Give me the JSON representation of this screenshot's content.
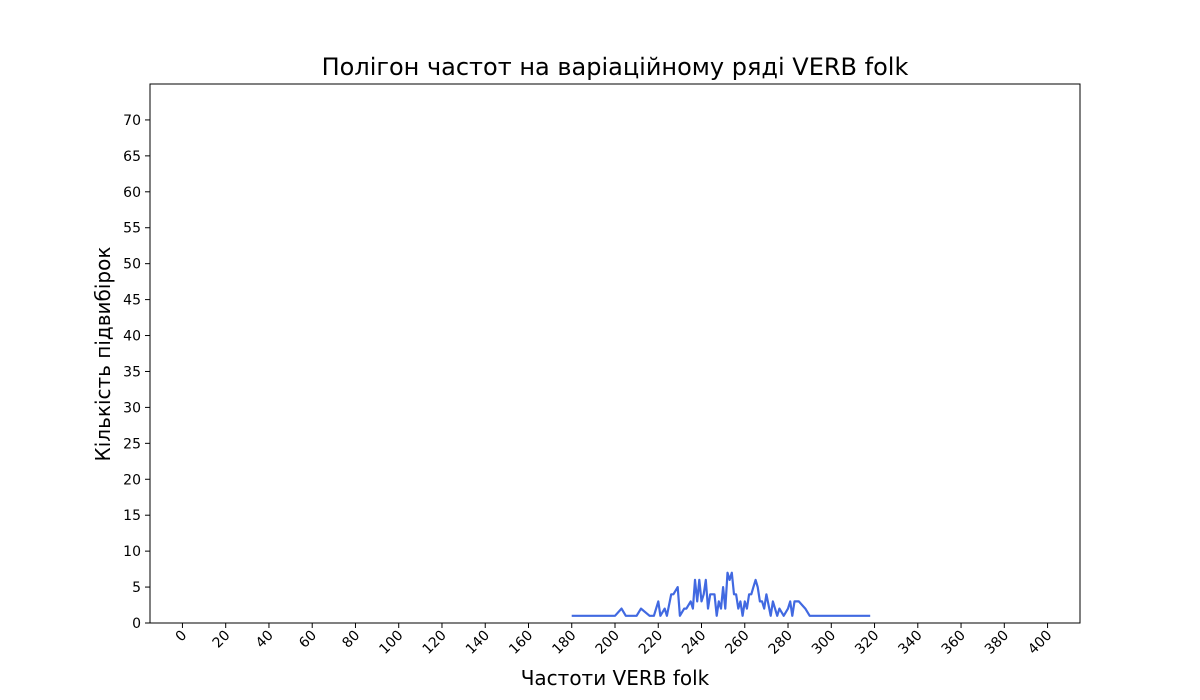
{
  "chart_data": {
    "type": "line",
    "title": "Полігон частот на варіаційному ряді VERB folk",
    "xlabel": "Частоти VERB folk",
    "ylabel": "Кількість підвибірок",
    "xlim": [
      -15,
      415
    ],
    "ylim": [
      0,
      75
    ],
    "xticks": [
      0,
      20,
      40,
      60,
      80,
      100,
      120,
      140,
      160,
      180,
      200,
      220,
      240,
      260,
      280,
      300,
      320,
      340,
      360,
      380,
      400
    ],
    "yticks": [
      0,
      5,
      10,
      15,
      20,
      25,
      30,
      35,
      40,
      45,
      50,
      55,
      60,
      65,
      70
    ],
    "grid": false,
    "series": [
      {
        "color": "#4169e1",
        "x": [
          180,
          200,
          203,
          205,
          210,
          212,
          216,
          218,
          220,
          221,
          223,
          224,
          226,
          227,
          229,
          230,
          232,
          233,
          235,
          236,
          237,
          238,
          239,
          240,
          241,
          242,
          243,
          244,
          246,
          247,
          248,
          249,
          250,
          251,
          252,
          253,
          254,
          255,
          256,
          257,
          258,
          259,
          260,
          261,
          262,
          263,
          264,
          265,
          266,
          267,
          268,
          269,
          270,
          272,
          273,
          275,
          276,
          278,
          280,
          281,
          282,
          283,
          285,
          288,
          290,
          300,
          318
        ],
        "y": [
          1,
          1,
          2,
          1,
          1,
          2,
          1,
          1,
          3,
          1,
          2,
          1,
          4,
          4,
          5,
          1,
          2,
          2,
          3,
          2,
          6,
          3,
          6,
          3,
          4,
          6,
          2,
          4,
          4,
          1,
          3,
          2,
          5,
          2,
          7,
          6,
          7,
          4,
          4,
          2,
          3,
          1,
          3,
          2,
          4,
          4,
          5,
          6,
          5,
          3,
          3,
          2,
          4,
          1,
          3,
          1,
          2,
          1,
          2,
          3,
          1,
          3,
          3,
          2,
          1,
          1,
          1
        ]
      }
    ]
  }
}
